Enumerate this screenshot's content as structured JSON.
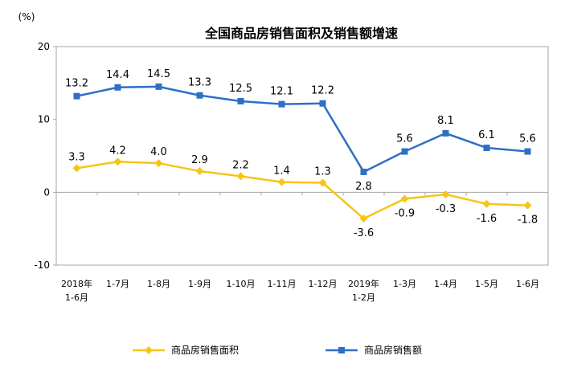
{
  "chart_data": {
    "type": "line",
    "title": "全国商品房销售面积及销售额增速",
    "unit_label": "(%)",
    "xlabel": "",
    "ylabel": "",
    "ylim": [
      -10,
      20
    ],
    "yticks": [
      "20",
      "10",
      "0",
      "-10"
    ],
    "grid": false,
    "legend_position": "bottom",
    "categories": [
      [
        "2018年",
        "1-6月"
      ],
      [
        "1-7月"
      ],
      [
        "1-8月"
      ],
      [
        "1-9月"
      ],
      [
        "1-10月"
      ],
      [
        "1-11月"
      ],
      [
        "1-12月"
      ],
      [
        "2019年",
        "1-2月"
      ],
      [
        "1-3月"
      ],
      [
        "1-4月"
      ],
      [
        "1-5月"
      ],
      [
        "1-6月"
      ]
    ],
    "series": [
      {
        "name": "商品房销售面积",
        "color": "#f5c518",
        "marker": "diamond",
        "values": [
          3.3,
          4.2,
          4.0,
          2.9,
          2.2,
          1.4,
          1.3,
          -3.6,
          -0.9,
          -0.3,
          -1.6,
          -1.8
        ],
        "labels": [
          "3.3",
          "4.2",
          "4.0",
          "2.9",
          "2.2",
          "1.4",
          "1.3",
          "-3.6",
          "-0.9",
          "-0.3",
          "-1.6",
          "-1.8"
        ]
      },
      {
        "name": "商品房销售额",
        "color": "#2e6fc4",
        "marker": "square",
        "values": [
          13.2,
          14.4,
          14.5,
          13.3,
          12.5,
          12.1,
          12.2,
          2.8,
          5.6,
          8.1,
          6.1,
          5.6
        ],
        "labels": [
          "13.2",
          "14.4",
          "14.5",
          "13.3",
          "12.5",
          "12.1",
          "12.2",
          "2.8",
          "5.6",
          "8.1",
          "6.1",
          "5.6"
        ]
      }
    ]
  }
}
